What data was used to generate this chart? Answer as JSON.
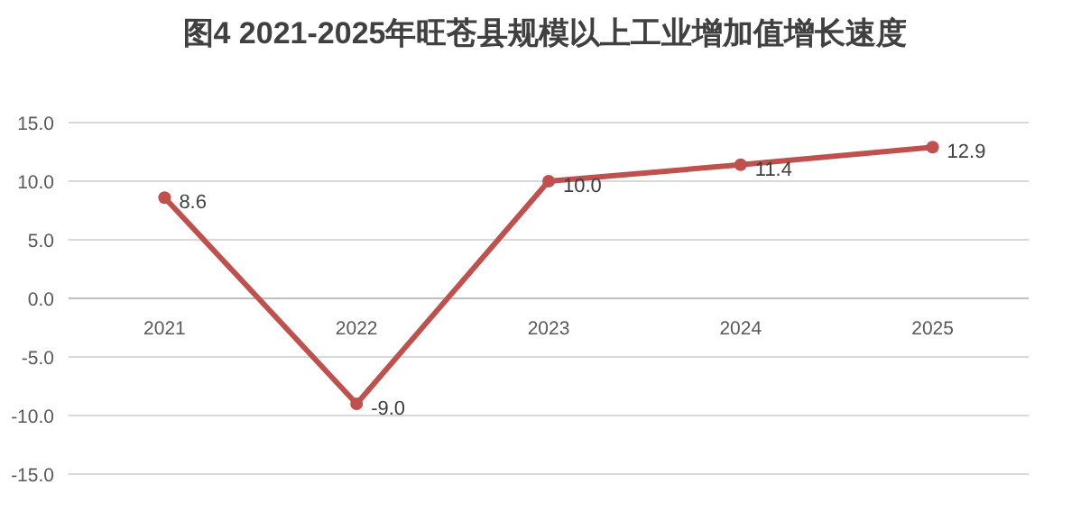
{
  "chart_data": {
    "type": "line",
    "title": "图4  2021-2025年旺苍县规模以上工业增加值增长速度",
    "categories": [
      "2021",
      "2022",
      "2023",
      "2024",
      "2025"
    ],
    "series": [
      {
        "color": "#c0504d",
        "values": [
          8.6,
          -9.0,
          10.0,
          11.4,
          12.9
        ],
        "value_labels": [
          "8.6",
          "-9.0",
          "10.0",
          "11.4",
          "12.9"
        ]
      }
    ],
    "ylim": [
      -15,
      15
    ],
    "yticks": [
      {
        "value": 15,
        "label": "15.0"
      },
      {
        "value": 10,
        "label": "10.0"
      },
      {
        "value": 5,
        "label": "5.0"
      },
      {
        "value": 0,
        "label": "0.0"
      },
      {
        "value": -5,
        "label": "-5.0"
      },
      {
        "value": -10,
        "label": "-10.0"
      },
      {
        "value": -15,
        "label": "-15.0"
      }
    ],
    "grid": "y",
    "marker": "circle",
    "line_style": "solid"
  }
}
